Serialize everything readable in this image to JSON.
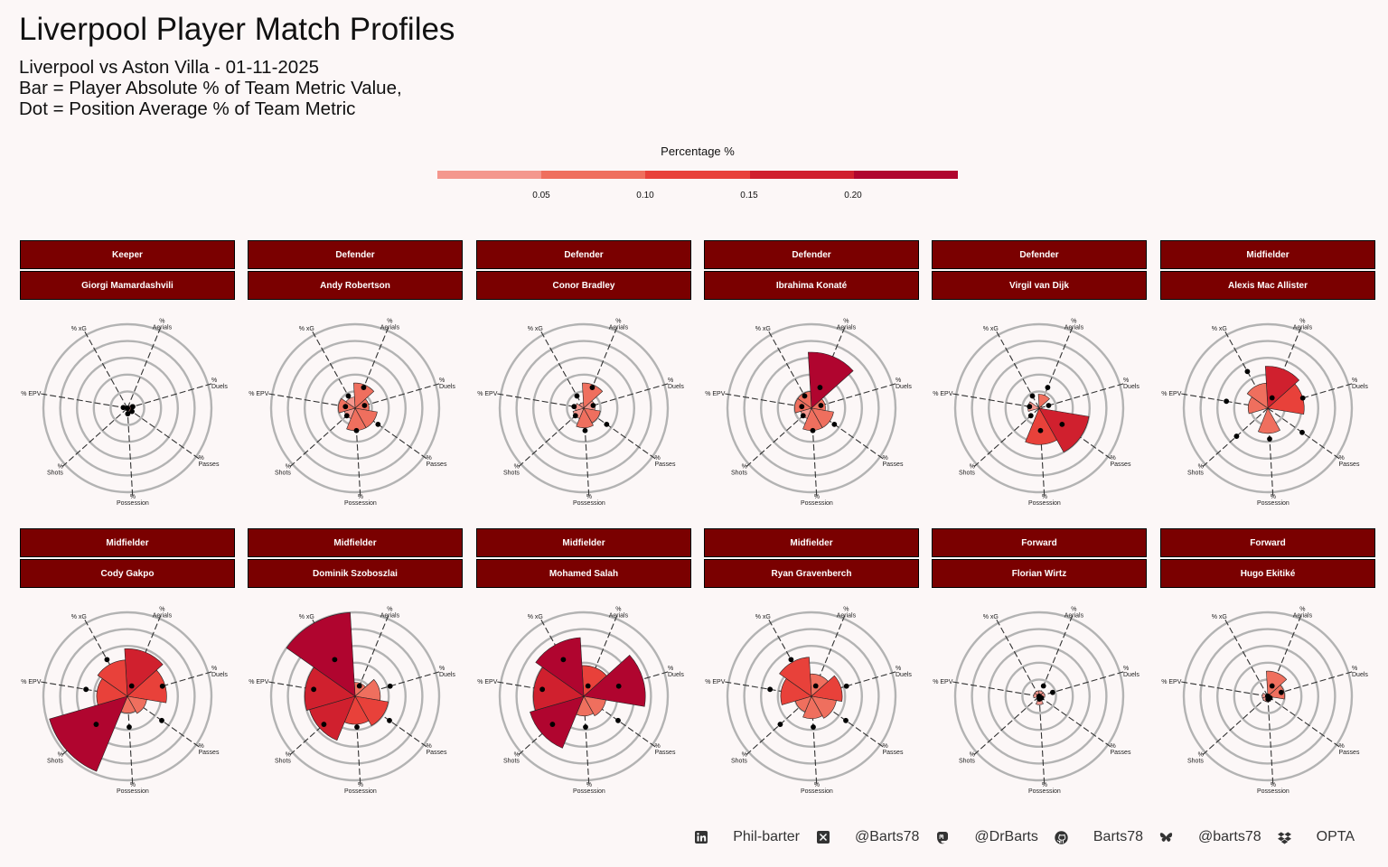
{
  "title": "Liverpool Player Match Profiles",
  "subtitle_lines": [
    "Liverpool vs Aston Villa - 01-11-2025",
    "Bar = Player Absolute % of Team Metric Value,",
    "Dot = Position Average % of Team Metric"
  ],
  "legend": {
    "title": "Percentage %",
    "ticks": [
      "0.05",
      "0.10",
      "0.15",
      "0.20"
    ],
    "colors": [
      "#f4978e",
      "#ef6f5e",
      "#e8413a",
      "#d0202e",
      "#b0052f"
    ]
  },
  "footer": [
    {
      "icon": "linkedin-icon",
      "label": "Phil-barter"
    },
    {
      "icon": "x-twitter-icon",
      "label": "@Barts78"
    },
    {
      "icon": "mastodon-icon",
      "label": "@DrBarts"
    },
    {
      "icon": "github-icon",
      "label": "Barts78"
    },
    {
      "icon": "bluesky-icon",
      "label": "@barts78"
    },
    {
      "icon": "dropbox-icon",
      "label": "OPTA"
    }
  ],
  "chart_data": {
    "type": "polar-bar",
    "axes": [
      "% Aerials",
      "% Duels",
      "% Passes",
      "% Possession",
      "% Shots",
      "% EPV",
      "% xG"
    ],
    "axis_label_lines": [
      [
        "%",
        "Aerials"
      ],
      [
        "%",
        "Duels"
      ],
      [
        "%",
        "Passes"
      ],
      [
        "%",
        "Possession"
      ],
      [
        "%",
        "Shots"
      ],
      [
        "% EPV"
      ],
      [
        "% xG"
      ]
    ],
    "rlim": [
      0,
      0.3
    ],
    "color_scale": {
      "breaks": [
        0.05,
        0.1,
        0.15,
        0.2
      ],
      "colors": [
        "#f4978e",
        "#ef6f5e",
        "#e8413a",
        "#d0202e",
        "#b0052f"
      ]
    },
    "players": [
      {
        "position": "Keeper",
        "name": "Giorgi Mamardashvili",
        "values": [
          0.0,
          0.02,
          0.02,
          0.01,
          0.0,
          0.0,
          0.0
        ],
        "position_avg": [
          0.0,
          0.02,
          0.02,
          0.02,
          0.0,
          0.015,
          0.0
        ]
      },
      {
        "position": "Defender",
        "name": "Andy Robertson",
        "values": [
          0.09,
          0.05,
          0.08,
          0.08,
          0.04,
          0.06,
          0.04
        ],
        "position_avg": [
          0.08,
          0.035,
          0.1,
          0.08,
          0.04,
          0.035,
          0.05
        ]
      },
      {
        "position": "Defender",
        "name": "Conor Bradley",
        "values": [
          0.09,
          0.04,
          0.06,
          0.07,
          0.04,
          0.03,
          0.02
        ],
        "position_avg": [
          0.08,
          0.035,
          0.1,
          0.08,
          0.04,
          0.035,
          0.05
        ]
      },
      {
        "position": "Defender",
        "name": "Ibrahima Konaté",
        "values": [
          0.2,
          0.05,
          0.08,
          0.08,
          0.04,
          0.06,
          0.06
        ],
        "position_avg": [
          0.08,
          0.035,
          0.1,
          0.08,
          0.04,
          0.035,
          0.05
        ]
      },
      {
        "position": "Defender",
        "name": "Virgil van Dijk",
        "values": [
          0.05,
          0.01,
          0.18,
          0.13,
          0.0,
          0.04,
          0.0
        ],
        "position_avg": [
          0.08,
          0.035,
          0.1,
          0.08,
          0.04,
          0.035,
          0.05
        ]
      },
      {
        "position": "Midfielder",
        "name": "Alexis Mac Allister",
        "values": [
          0.15,
          0.13,
          0.0,
          0.09,
          0.0,
          0.07,
          0.09
        ],
        "position_avg": [
          0.04,
          0.13,
          0.15,
          0.11,
          0.15,
          0.15,
          0.15
        ]
      },
      {
        "position": "Midfielder",
        "name": "Cody Gakpo",
        "values": [
          0.17,
          0.14,
          0.07,
          0.06,
          0.29,
          0.11,
          0.13
        ],
        "position_avg": [
          0.04,
          0.13,
          0.15,
          0.11,
          0.15,
          0.15,
          0.15
        ]
      },
      {
        "position": "Midfielder",
        "name": "Dominik Szoboszlai",
        "values": [
          0.05,
          0.09,
          0.12,
          0.1,
          0.17,
          0.18,
          0.3
        ],
        "position_avg": [
          0.04,
          0.13,
          0.15,
          0.11,
          0.15,
          0.15,
          0.15
        ]
      },
      {
        "position": "Midfielder",
        "name": "Mohamed Salah",
        "values": [
          0.11,
          0.22,
          0.08,
          0.07,
          0.2,
          0.18,
          0.21
        ],
        "position_avg": [
          0.04,
          0.13,
          0.15,
          0.11,
          0.15,
          0.15,
          0.15
        ]
      },
      {
        "position": "Midfielder",
        "name": "Ryan Gravenberch",
        "values": [
          0.08,
          0.11,
          0.09,
          0.08,
          0.06,
          0.11,
          0.14
        ],
        "position_avg": [
          0.04,
          0.13,
          0.15,
          0.11,
          0.15,
          0.15,
          0.15
        ]
      },
      {
        "position": "Forward",
        "name": "Florian Wirtz",
        "values": [
          0.02,
          0.02,
          0.01,
          0.03,
          0.01,
          0.02,
          0.02
        ],
        "position_avg": [
          0.04,
          0.05,
          0.01,
          0.01,
          0.0,
          0.0,
          0.0
        ]
      },
      {
        "position": "Forward",
        "name": "Hugo Ekitiké",
        "values": [
          0.09,
          0.06,
          0.01,
          0.02,
          0.02,
          0.02,
          0.01
        ],
        "position_avg": [
          0.04,
          0.05,
          0.01,
          0.01,
          0.0,
          0.0,
          0.0
        ]
      }
    ]
  }
}
